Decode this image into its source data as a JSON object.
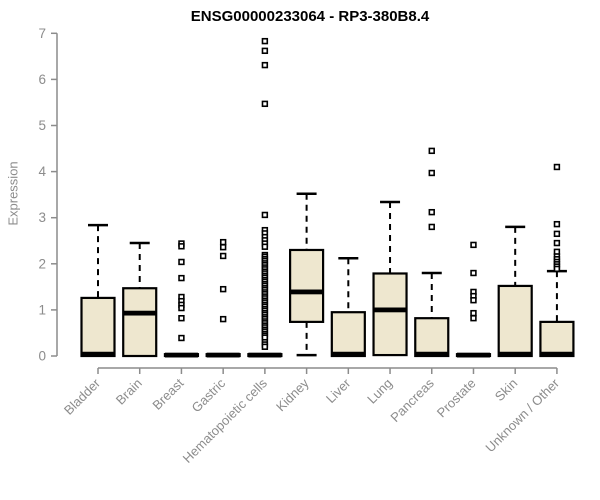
{
  "chart_data": {
    "type": "boxplot",
    "title": "ENSG00000233064 - RP3-380B8.4",
    "ylabel": "Expression",
    "xlabel": "",
    "ylim": [
      0,
      7
    ],
    "yticks": [
      0,
      1,
      2,
      3,
      4,
      5,
      6,
      7
    ],
    "grid": false,
    "legend": "none",
    "categories": [
      "Bladder",
      "Brain",
      "Breast",
      "Gastric",
      "Hematopoietic cells",
      "Kidney",
      "Liver",
      "Lung",
      "Pancreas",
      "Prostate",
      "Skin",
      "Unknown / Other"
    ],
    "series": [
      {
        "name": "Bladder",
        "whisker_low": 0,
        "q1": 0,
        "median": 0.04,
        "q3": 1.26,
        "whisker_high": 2.84,
        "outliers": []
      },
      {
        "name": "Brain",
        "whisker_low": 0,
        "q1": 0,
        "median": 0.93,
        "q3": 1.47,
        "whisker_high": 2.45,
        "outliers": []
      },
      {
        "name": "Breast",
        "whisker_low": 0,
        "q1": 0,
        "median": 0.02,
        "q3": 0.04,
        "whisker_high": 0.04,
        "outliers": [
          2.44,
          2.38,
          2.04,
          1.69,
          1.28,
          1.19,
          1.11,
          1.04,
          0.82,
          0.39
        ]
      },
      {
        "name": "Gastric",
        "whisker_low": 0,
        "q1": 0,
        "median": 0.02,
        "q3": 0.04,
        "whisker_high": 0.04,
        "outliers": [
          2.47,
          2.36,
          2.17,
          1.45,
          0.8
        ]
      },
      {
        "name": "Hematopoietic cells",
        "whisker_low": 0,
        "q1": 0,
        "median": 0.02,
        "q3": 0.04,
        "whisker_high": 0.04,
        "outliers": [
          6.83,
          6.62,
          6.31,
          5.47,
          3.06,
          2.73,
          2.66,
          2.58,
          2.51,
          2.44,
          2.37,
          2.19,
          2.15,
          2.1,
          2.06,
          2.01,
          1.97,
          1.92,
          1.88,
          1.83,
          1.79,
          1.74,
          1.7,
          1.65,
          1.61,
          1.56,
          1.52,
          1.47,
          1.43,
          1.38,
          1.34,
          1.29,
          1.25,
          1.2,
          1.16,
          1.11,
          1.07,
          1.02,
          0.98,
          0.93,
          0.89,
          0.84,
          0.8,
          0.75,
          0.71,
          0.66,
          0.62,
          0.57,
          0.53,
          0.48,
          0.44,
          0.4,
          0.3,
          0.25,
          0.2
        ]
      },
      {
        "name": "Kidney",
        "whisker_low": 0.02,
        "q1": 0.74,
        "median": 1.39,
        "q3": 2.3,
        "whisker_high": 3.52,
        "outliers": []
      },
      {
        "name": "Liver",
        "whisker_low": 0,
        "q1": 0,
        "median": 0.04,
        "q3": 0.95,
        "whisker_high": 2.12,
        "outliers": []
      },
      {
        "name": "Lung",
        "whisker_low": 0.02,
        "q1": 0.02,
        "median": 1.0,
        "q3": 1.79,
        "whisker_high": 3.34,
        "outliers": []
      },
      {
        "name": "Pancreas",
        "whisker_low": 0,
        "q1": 0,
        "median": 0.04,
        "q3": 0.82,
        "whisker_high": 1.8,
        "outliers": [
          4.45,
          3.97,
          3.12,
          2.8
        ]
      },
      {
        "name": "Prostate",
        "whisker_low": 0,
        "q1": 0,
        "median": 0.02,
        "q3": 0.04,
        "whisker_high": 0.04,
        "outliers": [
          2.41,
          1.8,
          1.39,
          1.3,
          1.21,
          0.93,
          0.82
        ]
      },
      {
        "name": "Skin",
        "whisker_low": 0,
        "q1": 0,
        "median": 0.04,
        "q3": 1.52,
        "whisker_high": 2.8,
        "outliers": []
      },
      {
        "name": "Unknown / Other",
        "whisker_low": 0,
        "q1": 0,
        "median": 0.04,
        "q3": 0.74,
        "whisker_high": 1.84,
        "outliers": [
          4.1,
          2.86,
          2.65,
          2.45,
          2.26,
          2.16,
          2.1,
          2.04,
          1.99,
          1.94,
          1.89
        ]
      }
    ],
    "colors": {
      "box_fill": "#EEE7CF",
      "box_stroke": "#000000",
      "median": "#000000",
      "whisker": "#000000",
      "outlier_fill": "#FFFFFF",
      "outlier_stroke": "#000000",
      "axis": "#8C8C8C",
      "tick_text": "#8C8C8C",
      "title_text": "#000000"
    }
  }
}
